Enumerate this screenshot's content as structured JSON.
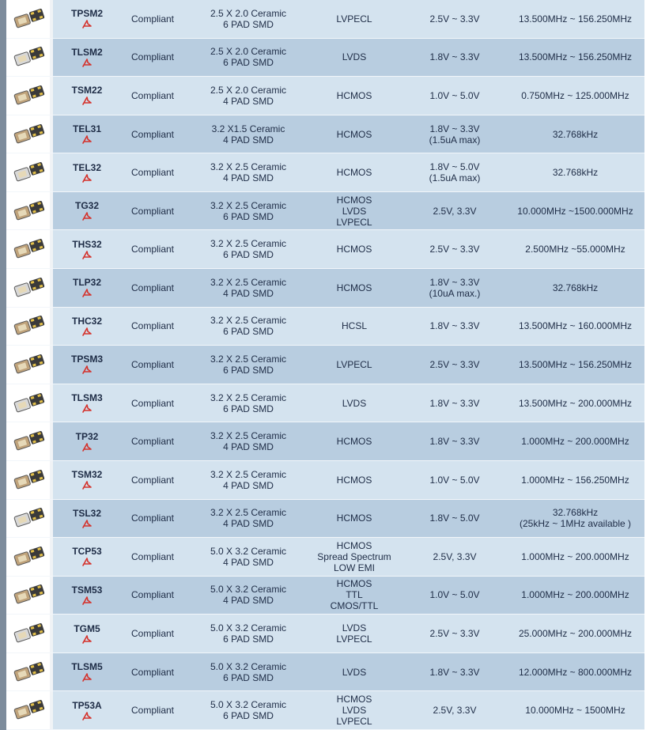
{
  "table": {
    "rows": [
      {
        "part": "TPSM2",
        "rohs": "Compliant",
        "package": [
          "2.5 X 2.0 Ceramic",
          "6 PAD SMD"
        ],
        "output": [
          "LVPECL"
        ],
        "voltage": [
          "2.5V ~ 3.3V"
        ],
        "frequency": [
          "13.500MHz ~ 156.250MHz"
        ]
      },
      {
        "part": "TLSM2",
        "rohs": "Compliant",
        "package": [
          "2.5 X 2.0 Ceramic",
          "6 PAD SMD"
        ],
        "output": [
          "LVDS"
        ],
        "voltage": [
          "1.8V ~ 3.3V"
        ],
        "frequency": [
          "13.500MHz ~ 156.250MHz"
        ]
      },
      {
        "part": "TSM22",
        "rohs": "Compliant",
        "package": [
          "2.5 X 2.0 Ceramic",
          "4 PAD SMD"
        ],
        "output": [
          "HCMOS"
        ],
        "voltage": [
          "1.0V ~ 5.0V"
        ],
        "frequency": [
          "0.750MHz ~ 125.000MHz"
        ]
      },
      {
        "part": "TEL31",
        "rohs": "Compliant",
        "package": [
          "3.2 X1.5 Ceramic",
          "4 PAD SMD"
        ],
        "output": [
          "HCMOS"
        ],
        "voltage": [
          "1.8V ~ 3.3V",
          "(1.5uA max)"
        ],
        "frequency": [
          "32.768kHz"
        ]
      },
      {
        "part": "TEL32",
        "rohs": "Compliant",
        "package": [
          "3.2 X 2.5 Ceramic",
          "4 PAD SMD"
        ],
        "output": [
          "HCMOS"
        ],
        "voltage": [
          "1.8V ~ 5.0V",
          "(1.5uA max)"
        ],
        "frequency": [
          "32.768kHz"
        ]
      },
      {
        "part": "TG32",
        "rohs": "Compliant",
        "package": [
          "3.2 X 2.5 Ceramic",
          "6 PAD SMD"
        ],
        "output": [
          "HCMOS",
          "LVDS",
          "LVPECL"
        ],
        "voltage": [
          "2.5V, 3.3V"
        ],
        "frequency": [
          "10.000MHz ~1500.000MHz"
        ]
      },
      {
        "part": "THS32",
        "rohs": "Compliant",
        "package": [
          "3.2 X 2.5 Ceramic",
          "6 PAD SMD"
        ],
        "output": [
          "HCMOS"
        ],
        "voltage": [
          "2.5V ~ 3.3V"
        ],
        "frequency": [
          "2.500MHz ~55.000MHz"
        ]
      },
      {
        "part": "TLP32",
        "rohs": "Compliant",
        "package": [
          "3.2 X 2.5 Ceramic",
          "4 PAD SMD"
        ],
        "output": [
          "HCMOS"
        ],
        "voltage": [
          "1.8V ~ 3.3V",
          "(10uA max.)"
        ],
        "frequency": [
          "32.768kHz"
        ]
      },
      {
        "part": "THC32",
        "rohs": "Compliant",
        "package": [
          "3.2 X 2.5 Ceramic",
          "6 PAD SMD"
        ],
        "output": [
          "HCSL"
        ],
        "voltage": [
          "1.8V ~ 3.3V"
        ],
        "frequency": [
          "13.500MHz ~ 160.000MHz"
        ]
      },
      {
        "part": "TPSM3",
        "rohs": "Compliant",
        "package": [
          "3.2 X 2.5 Ceramic",
          "6 PAD SMD"
        ],
        "output": [
          "LVPECL"
        ],
        "voltage": [
          "2.5V ~ 3.3V"
        ],
        "frequency": [
          "13.500MHz ~ 156.250MHz"
        ]
      },
      {
        "part": "TLSM3",
        "rohs": "Compliant",
        "package": [
          "3.2 X 2.5 Ceramic",
          "6 PAD SMD"
        ],
        "output": [
          "LVDS"
        ],
        "voltage": [
          "1.8V ~ 3.3V"
        ],
        "frequency": [
          "13.500MHz ~ 200.000MHz"
        ]
      },
      {
        "part": "TP32",
        "rohs": "Compliant",
        "package": [
          "3.2 X 2.5 Ceramic",
          "4 PAD SMD"
        ],
        "output": [
          "HCMOS"
        ],
        "voltage": [
          "1.8V ~ 3.3V"
        ],
        "frequency": [
          "1.000MHz ~ 200.000MHz"
        ]
      },
      {
        "part": "TSM32",
        "rohs": "Compliant",
        "package": [
          "3.2 X 2.5 Ceramic",
          "4 PAD SMD"
        ],
        "output": [
          "HCMOS"
        ],
        "voltage": [
          "1.0V ~ 5.0V"
        ],
        "frequency": [
          "1.000MHz ~ 156.250MHz"
        ]
      },
      {
        "part": "TSL32",
        "rohs": "Compliant",
        "package": [
          "3.2 X 2.5 Ceramic",
          "4 PAD SMD"
        ],
        "output": [
          "HCMOS"
        ],
        "voltage": [
          "1.8V ~ 5.0V"
        ],
        "frequency": [
          "32.768kHz",
          "(25kHz ~ 1MHz available )"
        ]
      },
      {
        "part": "TCP53",
        "rohs": "Compliant",
        "package": [
          "5.0 X 3.2 Ceramic",
          "4 PAD SMD"
        ],
        "output": [
          "HCMOS",
          "Spread Spectrum",
          "LOW EMI"
        ],
        "voltage": [
          "2.5V, 3.3V"
        ],
        "frequency": [
          "1.000MHz ~ 200.000MHz"
        ]
      },
      {
        "part": "TSM53",
        "rohs": "Compliant",
        "package": [
          "5.0 X 3.2 Ceramic",
          "4 PAD SMD"
        ],
        "output": [
          "HCMOS",
          "TTL",
          "CMOS/TTL"
        ],
        "voltage": [
          "1.0V ~ 5.0V"
        ],
        "frequency": [
          "1.000MHz ~ 200.000MHz"
        ]
      },
      {
        "part": "TGM5",
        "rohs": "Compliant",
        "package": [
          "5.0 X 3.2 Ceramic",
          "6 PAD SMD"
        ],
        "output": [
          "LVDS",
          "LVPECL"
        ],
        "voltage": [
          "2.5V ~ 3.3V"
        ],
        "frequency": [
          "25.000MHz ~ 200.000MHz"
        ]
      },
      {
        "part": "TLSM5",
        "rohs": "Compliant",
        "package": [
          "5.0 X 3.2 Ceramic",
          "6 PAD SMD"
        ],
        "output": [
          "LVDS"
        ],
        "voltage": [
          "1.8V ~ 3.3V"
        ],
        "frequency": [
          "12.000MHz ~ 800.000MHz"
        ]
      },
      {
        "part": "TP53A",
        "rohs": "Compliant",
        "package": [
          "5.0 X 3.2 Ceramic",
          "6 PAD SMD"
        ],
        "output": [
          "HCMOS",
          "LVDS",
          "LVPECL"
        ],
        "voltage": [
          "2.5V, 3.3V"
        ],
        "frequency": [
          "10.000MHz ~ 1500MHz"
        ]
      }
    ]
  }
}
